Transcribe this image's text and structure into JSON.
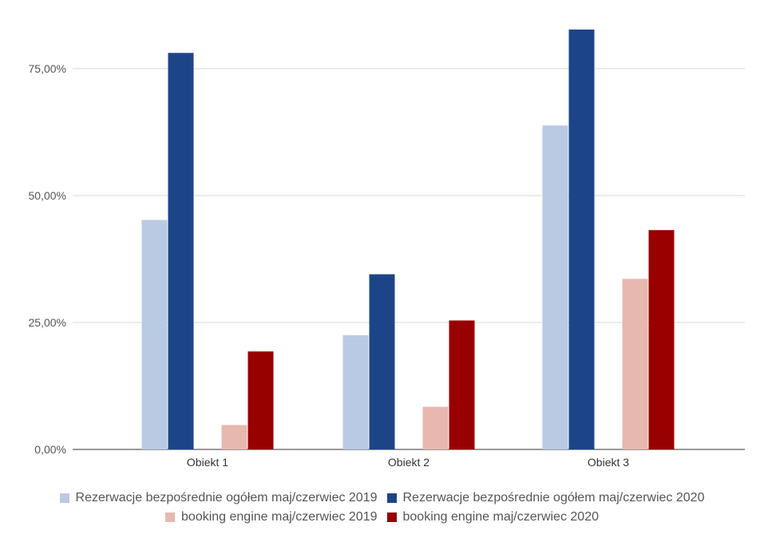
{
  "chart_data": {
    "type": "bar",
    "title": "",
    "xlabel": "",
    "ylabel": "",
    "categories": [
      "Obiekt 1",
      "Obiekt 2",
      "Obiekt 3"
    ],
    "ylim": [
      0,
      0.85
    ],
    "yticks": [
      0,
      0.25,
      0.5,
      0.75
    ],
    "ytick_labels": [
      "0,00%",
      "25,00%",
      "50,00%",
      "75,00%"
    ],
    "grid": true,
    "legend_position": "bottom",
    "series": [
      {
        "name": "Rezerwacje bezpośrednie ogółem maj/czerwiec 2019",
        "color": "#b9cae3",
        "values": [
          0.452,
          0.225,
          0.638
        ]
      },
      {
        "name": "Rezerwacje bezpośrednie ogółem maj/czerwiec 2020",
        "color": "#1c4587",
        "values": [
          0.781,
          0.345,
          0.827
        ]
      },
      {
        "name": "booking engine maj/czerwiec 2019",
        "color": "#e6b8af",
        "values": [
          0.048,
          0.084,
          0.336
        ]
      },
      {
        "name": "booking engine maj/czerwiec 2020",
        "color": "#990000",
        "values": [
          0.193,
          0.254,
          0.432
        ]
      }
    ]
  }
}
